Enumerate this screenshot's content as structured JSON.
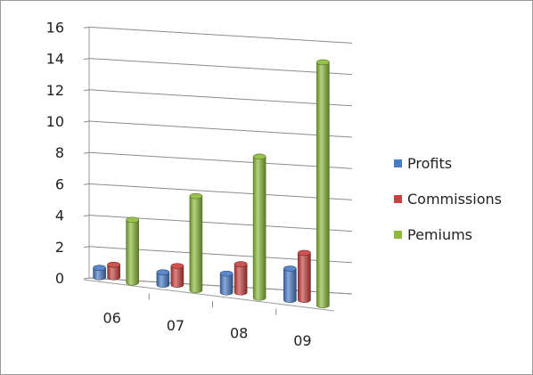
{
  "chart_data": {
    "type": "bar",
    "style": "3d-clustered-cylinder",
    "title": "",
    "xlabel": "",
    "ylabel": "",
    "categories": [
      "06",
      "07",
      "08",
      "09"
    ],
    "yticks": [
      "0",
      "2",
      "4",
      "6",
      "8",
      "10",
      "12",
      "14",
      "16"
    ],
    "ylim": [
      0,
      16
    ],
    "grid": true,
    "legend_position": "right",
    "series": [
      {
        "name": "Profits",
        "color": "#4a7bc8",
        "values": [
          0.6,
          0.8,
          1.2,
          2.0
        ]
      },
      {
        "name": "Commissions",
        "color": "#c8413e",
        "values": [
          0.8,
          1.2,
          1.8,
          3.0
        ]
      },
      {
        "name": "Pemiums",
        "color": "#8dba3a",
        "values": [
          4.0,
          6.0,
          9.0,
          15.5
        ]
      }
    ]
  }
}
